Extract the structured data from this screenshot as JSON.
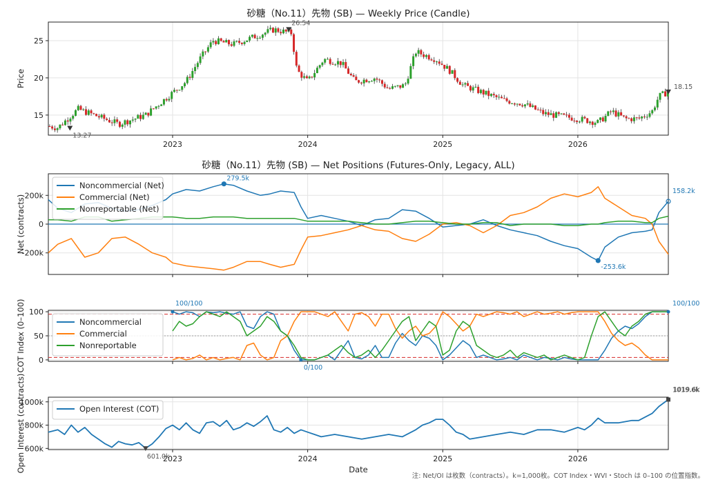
{
  "colors": {
    "noncommercial": "#1f77b4",
    "commercial": "#ff7f0e",
    "nonreportable": "#2ca02c",
    "oi": "#1f77b4",
    "up": "#2ca02c",
    "down": "#d62728",
    "zero_line": "#1f77b4",
    "threshold": "#d62728",
    "mid": "#999999"
  },
  "footnote": "注: Net/OI は枚数（contracts）。k=1,000枚。COT Index・WVI・Stoch は 0–100 の位置指数。",
  "x_date_labels": [
    "2023",
    "2024",
    "2025",
    "2026"
  ],
  "chart_data": [
    {
      "type": "candlestick",
      "title": "砂糖（No.11）先物 (SB) — Weekly Price (Candle)",
      "ylabel": "Price",
      "xlim": [
        2022.08,
        2026.67
      ],
      "ylim": [
        12.3,
        27.5
      ],
      "yticks": [
        15,
        20,
        25
      ],
      "grid": true,
      "ohlc_anchor_x": [
        2022.08,
        2022.15,
        2022.3,
        2022.45,
        2022.6,
        2022.8,
        2023.0,
        2023.1,
        2023.2,
        2023.3,
        2023.45,
        2023.6,
        2023.75,
        2023.88,
        2023.92,
        2024.0,
        2024.12,
        2024.25,
        2024.35,
        2024.5,
        2024.6,
        2024.72,
        2024.8,
        2024.95,
        2025.05,
        2025.15,
        2025.3,
        2025.45,
        2025.6,
        2025.75,
        2025.82,
        2026.0,
        2026.15,
        2026.25,
        2026.35,
        2026.45,
        2026.55,
        2026.6,
        2026.67
      ],
      "ohlc_anchor_close": [
        13.5,
        13.3,
        15.8,
        14.8,
        13.8,
        15.0,
        18.0,
        19.5,
        22.5,
        25.0,
        24.5,
        25.5,
        26.5,
        26.0,
        21.0,
        19.5,
        22.5,
        22.0,
        19.5,
        20.0,
        18.5,
        19.0,
        23.5,
        22.5,
        21.0,
        19.0,
        18.0,
        17.0,
        16.5,
        15.2,
        15.0,
        14.5,
        14.0,
        15.5,
        14.5,
        14.5,
        15.5,
        17.5,
        18.15
      ],
      "annotations": [
        {
          "label": "13.27",
          "x": 2022.24,
          "y": 13.27
        },
        {
          "label": "26.54",
          "x": 2023.86,
          "y": 26.54
        },
        {
          "label": "18.15",
          "x": 2026.67,
          "y": 18.15
        }
      ]
    },
    {
      "type": "line",
      "title": "砂糖（No.11）先物 (SB) — Net Positions (Futures-Only, Legacy, ALL)",
      "ylabel": "Net (contracts)",
      "xlim": [
        2022.08,
        2026.67
      ],
      "ylim": [
        -350000,
        350000
      ],
      "yticks": [
        -200000,
        0,
        200000
      ],
      "ytick_labels": [
        "-200k",
        "0",
        "200k"
      ],
      "legend": "top-left",
      "grid": true,
      "x": [
        2022.08,
        2022.15,
        2022.25,
        2022.35,
        2022.45,
        2022.55,
        2022.65,
        2022.75,
        2022.85,
        2022.95,
        2023.0,
        2023.1,
        2023.2,
        2023.3,
        2023.38,
        2023.45,
        2023.55,
        2023.65,
        2023.72,
        2023.8,
        2023.9,
        2023.95,
        2024.0,
        2024.1,
        2024.2,
        2024.3,
        2024.4,
        2024.5,
        2024.6,
        2024.7,
        2024.8,
        2024.9,
        2025.0,
        2025.1,
        2025.2,
        2025.3,
        2025.4,
        2025.5,
        2025.6,
        2025.7,
        2025.8,
        2025.9,
        2026.0,
        2026.1,
        2026.15,
        2026.2,
        2026.3,
        2026.4,
        2026.5,
        2026.55,
        2026.6,
        2026.67
      ],
      "series": [
        {
          "name": "Noncommercial (Net)",
          "values": [
            170000,
            110000,
            80000,
            140000,
            150000,
            110000,
            90000,
            100000,
            130000,
            170000,
            210000,
            240000,
            230000,
            260000,
            279500,
            270000,
            230000,
            200000,
            210000,
            230000,
            220000,
            120000,
            40000,
            60000,
            40000,
            20000,
            -10000,
            30000,
            40000,
            100000,
            90000,
            40000,
            -20000,
            -10000,
            0,
            30000,
            -10000,
            -40000,
            -60000,
            -80000,
            -120000,
            -150000,
            -170000,
            -230000,
            -253600,
            -160000,
            -90000,
            -60000,
            -50000,
            -40000,
            80000,
            158200
          ]
        },
        {
          "name": "Commercial (Net)",
          "values": [
            -200000,
            -140000,
            -100000,
            -230000,
            -200000,
            -100000,
            -90000,
            -140000,
            -200000,
            -230000,
            -270000,
            -290000,
            -300000,
            -310000,
            -320000,
            -300000,
            -260000,
            -260000,
            -280000,
            -300000,
            -280000,
            -180000,
            -90000,
            -80000,
            -60000,
            -40000,
            -10000,
            -40000,
            -50000,
            -100000,
            -120000,
            -70000,
            0,
            10000,
            -10000,
            -60000,
            -10000,
            60000,
            80000,
            120000,
            180000,
            210000,
            190000,
            220000,
            260000,
            180000,
            120000,
            60000,
            40000,
            0,
            -120000,
            -210000
          ]
        },
        {
          "name": "Nonreportable (Net)",
          "values": [
            30000,
            30000,
            20000,
            50000,
            50000,
            20000,
            30000,
            40000,
            50000,
            50000,
            50000,
            40000,
            40000,
            50000,
            50000,
            50000,
            40000,
            40000,
            40000,
            40000,
            40000,
            30000,
            20000,
            20000,
            20000,
            20000,
            10000,
            0,
            0,
            10000,
            20000,
            20000,
            10000,
            0,
            0,
            10000,
            10000,
            -10000,
            0,
            0,
            0,
            -10000,
            -10000,
            0,
            0,
            10000,
            20000,
            20000,
            10000,
            10000,
            40000,
            55000
          ]
        }
      ],
      "annotations": [
        {
          "label": "279.5k",
          "x": 2023.38,
          "y": 279500
        },
        {
          "label": "-253.6k",
          "x": 2026.15,
          "y": -253600
        },
        {
          "label": "158.2k",
          "x": 2026.67,
          "y": 158200
        }
      ]
    },
    {
      "type": "line",
      "ylabel": "COT Index (0–100)",
      "xlim": [
        2022.08,
        2026.67
      ],
      "ylim": [
        -3,
        103
      ],
      "yticks": [
        0,
        50,
        100
      ],
      "hlines": [
        5,
        50,
        95
      ],
      "legend": "top-left",
      "grid": true,
      "x": [
        2023.0,
        2023.05,
        2023.1,
        2023.15,
        2023.2,
        2023.25,
        2023.3,
        2023.35,
        2023.4,
        2023.45,
        2023.5,
        2023.55,
        2023.6,
        2023.65,
        2023.7,
        2023.75,
        2023.8,
        2023.85,
        2023.9,
        2023.95,
        2024.0,
        2024.05,
        2024.1,
        2024.15,
        2024.2,
        2024.25,
        2024.3,
        2024.35,
        2024.4,
        2024.45,
        2024.5,
        2024.55,
        2024.6,
        2024.65,
        2024.7,
        2024.75,
        2024.8,
        2024.85,
        2024.9,
        2024.95,
        2025.0,
        2025.05,
        2025.1,
        2025.15,
        2025.2,
        2025.25,
        2025.3,
        2025.35,
        2025.4,
        2025.45,
        2025.5,
        2025.55,
        2025.6,
        2025.65,
        2025.7,
        2025.75,
        2025.8,
        2025.85,
        2025.9,
        2025.95,
        2026.0,
        2026.05,
        2026.1,
        2026.15,
        2026.2,
        2026.25,
        2026.3,
        2026.35,
        2026.4,
        2026.45,
        2026.5,
        2026.55,
        2026.6,
        2026.67
      ],
      "series": [
        {
          "name": "Noncommercial",
          "values": [
            100,
            95,
            100,
            98,
            90,
            100,
            98,
            100,
            97,
            95,
            100,
            70,
            65,
            90,
            100,
            95,
            60,
            50,
            20,
            0,
            0,
            0,
            5,
            10,
            0,
            20,
            40,
            5,
            2,
            10,
            30,
            5,
            5,
            35,
            55,
            40,
            30,
            50,
            45,
            30,
            0,
            10,
            25,
            40,
            30,
            5,
            10,
            5,
            0,
            2,
            5,
            0,
            10,
            5,
            0,
            5,
            3,
            0,
            5,
            2,
            0,
            0,
            0,
            0,
            20,
            45,
            60,
            70,
            65,
            75,
            90,
            100,
            100,
            100
          ]
        },
        {
          "name": "Commercial",
          "values": [
            0,
            5,
            0,
            3,
            10,
            0,
            5,
            0,
            3,
            5,
            0,
            30,
            35,
            10,
            0,
            5,
            40,
            50,
            80,
            100,
            100,
            100,
            95,
            90,
            100,
            80,
            60,
            95,
            98,
            90,
            70,
            95,
            95,
            65,
            45,
            60,
            70,
            50,
            55,
            70,
            100,
            90,
            75,
            60,
            70,
            95,
            90,
            95,
            100,
            98,
            95,
            100,
            90,
            95,
            100,
            95,
            97,
            100,
            95,
            98,
            100,
            100,
            100,
            100,
            80,
            55,
            40,
            30,
            35,
            25,
            10,
            0,
            0,
            0
          ]
        },
        {
          "name": "Nonreportable",
          "values": [
            60,
            80,
            70,
            75,
            90,
            100,
            95,
            90,
            100,
            90,
            80,
            50,
            60,
            70,
            90,
            80,
            60,
            50,
            30,
            5,
            0,
            0,
            5,
            10,
            20,
            30,
            15,
            5,
            10,
            20,
            5,
            20,
            40,
            60,
            80,
            90,
            40,
            60,
            80,
            70,
            10,
            20,
            60,
            80,
            70,
            30,
            20,
            10,
            5,
            10,
            20,
            5,
            15,
            10,
            5,
            10,
            0,
            5,
            10,
            5,
            0,
            5,
            50,
            90,
            100,
            80,
            60,
            50,
            70,
            80,
            95,
            100,
            100,
            100
          ]
        }
      ],
      "annotations": [
        {
          "label": "100/100",
          "x": 2023.0,
          "y": 100
        },
        {
          "label": "0/100",
          "x": 2023.95,
          "y": 0
        },
        {
          "label": "100/100",
          "x": 2026.67,
          "y": 100
        }
      ]
    },
    {
      "type": "line",
      "ylabel": "Open Interest (contracts)",
      "xlabel": "Date",
      "xlim": [
        2022.08,
        2026.67
      ],
      "ylim": [
        590000,
        1040000
      ],
      "yticks": [
        600000,
        800000,
        1000000
      ],
      "ytick_labels": [
        "600k",
        "800k",
        "1000k"
      ],
      "legend": "top-left",
      "grid": true,
      "x": [
        2022.08,
        2022.15,
        2022.2,
        2022.25,
        2022.3,
        2022.35,
        2022.4,
        2022.45,
        2022.5,
        2022.55,
        2022.6,
        2022.65,
        2022.7,
        2022.75,
        2022.8,
        2022.85,
        2022.9,
        2022.95,
        2023.0,
        2023.05,
        2023.1,
        2023.15,
        2023.2,
        2023.25,
        2023.3,
        2023.35,
        2023.4,
        2023.45,
        2023.5,
        2023.55,
        2023.6,
        2023.65,
        2023.7,
        2023.75,
        2023.8,
        2023.85,
        2023.9,
        2023.95,
        2024.0,
        2024.05,
        2024.1,
        2024.2,
        2024.3,
        2024.4,
        2024.5,
        2024.6,
        2024.7,
        2024.8,
        2024.85,
        2024.9,
        2024.95,
        2025.0,
        2025.05,
        2025.1,
        2025.15,
        2025.2,
        2025.3,
        2025.4,
        2025.5,
        2025.6,
        2025.7,
        2025.8,
        2025.9,
        2026.0,
        2026.05,
        2026.1,
        2026.15,
        2026.2,
        2026.3,
        2026.4,
        2026.45,
        2026.5,
        2026.55,
        2026.6,
        2026.67
      ],
      "series": [
        {
          "name": "Open Interest (COT)",
          "values": [
            740000,
            760000,
            720000,
            800000,
            740000,
            780000,
            720000,
            680000,
            640000,
            610000,
            660000,
            640000,
            630000,
            650000,
            601000,
            640000,
            700000,
            770000,
            800000,
            760000,
            820000,
            760000,
            730000,
            820000,
            830000,
            790000,
            840000,
            760000,
            780000,
            820000,
            790000,
            830000,
            880000,
            760000,
            740000,
            780000,
            730000,
            760000,
            740000,
            720000,
            700000,
            720000,
            700000,
            680000,
            700000,
            720000,
            700000,
            760000,
            800000,
            820000,
            850000,
            850000,
            800000,
            740000,
            720000,
            680000,
            700000,
            720000,
            740000,
            720000,
            760000,
            760000,
            740000,
            780000,
            760000,
            800000,
            860000,
            820000,
            820000,
            840000,
            840000,
            870000,
            900000,
            960000,
            1019600
          ]
        }
      ],
      "annotations": [
        {
          "label": "601.0k",
          "x": 2022.8,
          "y": 601000
        },
        {
          "label": "1019.6k",
          "x": 2026.67,
          "y": 1019600
        },
        {
          "label": "1019.6k",
          "x": 2026.67,
          "y": 1019600
        }
      ]
    }
  ]
}
